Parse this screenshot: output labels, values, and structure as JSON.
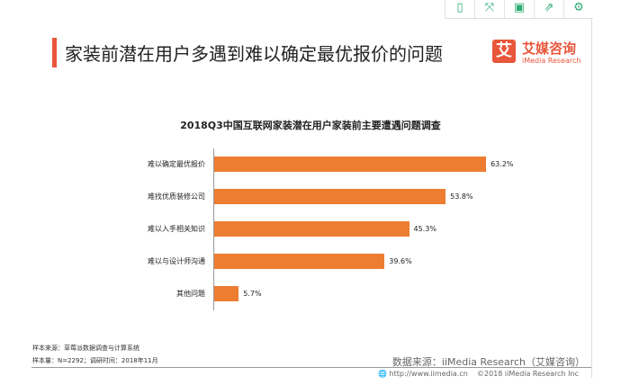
{
  "toolbar": {
    "icons": [
      "tablet-icon",
      "fullscreen-icon",
      "save-icon",
      "share-icon",
      "gear-icon"
    ]
  },
  "header": {
    "title": "家装前潜在用户多遇到难以确定最优报价的问题",
    "logo_mark": "艾",
    "logo_cn": "艾媒咨询",
    "logo_en": "iMedia Research"
  },
  "chart_data": {
    "type": "bar",
    "orientation": "horizontal",
    "title": "2018Q3中国互联网家装潜在用户家装前主要遭遇问题调查",
    "categories": [
      "难以确定最优报价",
      "难找优质装修公司",
      "难以入手相关知识",
      "难以与设计师沟通",
      "其他问题"
    ],
    "values": [
      63.2,
      53.8,
      45.3,
      39.6,
      5.7
    ],
    "labels": [
      "63.2%",
      "53.8%",
      "45.3%",
      "39.6%",
      "5.7%"
    ],
    "color": "#ed7d31",
    "xlim": [
      0,
      100
    ]
  },
  "footer": {
    "sample_source": "样本来源：草莓派数据调查与计算系统",
    "sample_size": "样本量：N=2292；调研时间：2018年11月",
    "data_source": "数据来源：iiMedia Research（艾媒咨询）",
    "url": "http://www.iimedia.cn",
    "copyright": "©2018  iiMedia Research  Inc"
  }
}
